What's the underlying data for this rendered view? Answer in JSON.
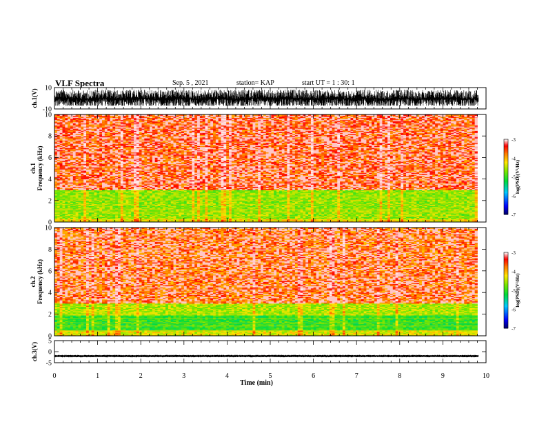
{
  "header": {
    "title": "VLF Spectra",
    "date": "Sep. 5 , 2021",
    "station": "station= KAP",
    "start": "start UT = 1 : 30: 1"
  },
  "chart_data": [
    {
      "type": "line",
      "name": "ch1-waveform",
      "ylabel": "ch.1(V)",
      "ylim": [
        -10,
        10
      ],
      "yticks": [
        "10",
        "-10"
      ],
      "xlim": [
        0,
        10
      ],
      "approx_range": [
        -7,
        8
      ]
    },
    {
      "type": "heatmap",
      "name": "ch1-spectrogram",
      "ylabel": "ch.1\nFrequency (kHz)",
      "ylim": [
        0,
        10
      ],
      "yticks": [
        "0",
        "2",
        "4",
        "6",
        "8",
        "10"
      ],
      "xlim": [
        0,
        9.8
      ],
      "colorbar": {
        "label": "log(PSD)(V²/Hz)",
        "range": [
          -7,
          -3
        ],
        "ticks": [
          "-3",
          "-4",
          "-5",
          "-6",
          "-7"
        ]
      },
      "bands": [
        {
          "from_khz": 0.0,
          "to_khz": 0.3,
          "level": -4.2
        },
        {
          "from_khz": 0.3,
          "to_khz": 3.0,
          "level": -4.6
        },
        {
          "from_khz": 3.0,
          "to_khz": 10.0,
          "level": -3.6
        }
      ]
    },
    {
      "type": "heatmap",
      "name": "ch2-spectrogram",
      "ylabel": "ch.2\nFrequency (kHz)",
      "ylim": [
        0,
        10
      ],
      "yticks": [
        "0",
        "2",
        "4",
        "6",
        "8",
        "10"
      ],
      "xlim": [
        0,
        9.8
      ],
      "colorbar": {
        "label": "log(PSD)(V²/Hz)",
        "range": [
          -7,
          -3
        ],
        "ticks": [
          "-3",
          "-4",
          "-5",
          "-6",
          "-7"
        ]
      },
      "bands": [
        {
          "from_khz": 0.0,
          "to_khz": 0.5,
          "level": -4.3
        },
        {
          "from_khz": 0.5,
          "to_khz": 1.9,
          "level": -5.0
        },
        {
          "from_khz": 1.9,
          "to_khz": 3.0,
          "level": -4.5
        },
        {
          "from_khz": 3.0,
          "to_khz": 10.0,
          "level": -3.7
        }
      ]
    },
    {
      "type": "line",
      "name": "ch3-waveform",
      "ylabel": "ch.3(V)",
      "ylim": [
        -5,
        5
      ],
      "yticks": [
        "5",
        "0",
        "-5"
      ],
      "xlim": [
        0,
        10
      ],
      "approx_range": [
        -2.3,
        -1.7
      ]
    }
  ],
  "x_axis": {
    "label": "Time (min)",
    "ticks": [
      "0",
      "1",
      "2",
      "3",
      "4",
      "5",
      "6",
      "7",
      "8",
      "9",
      "10"
    ],
    "range": [
      0,
      10
    ]
  }
}
